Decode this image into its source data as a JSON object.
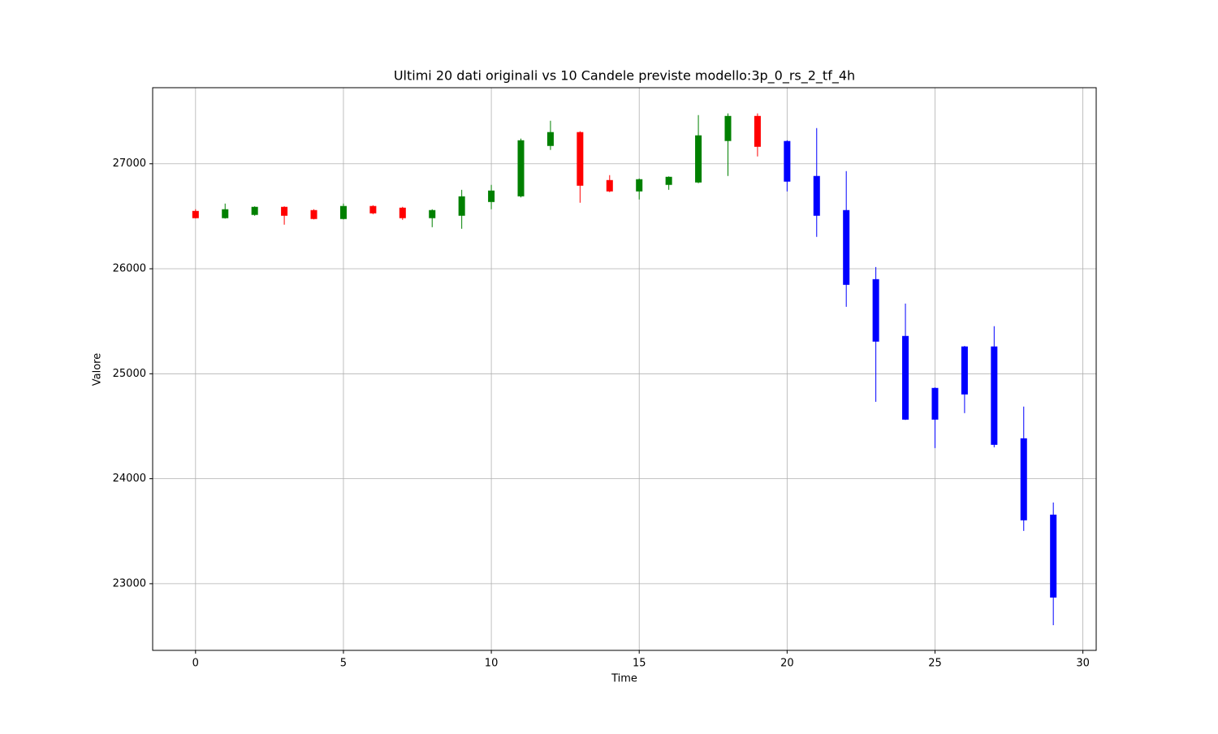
{
  "chart_data": {
    "type": "candlestick",
    "title": "Ultimi 20 dati originali vs 10 Candele previste modello:3p_0_rs_2_tf_4h",
    "x_label": "Time",
    "y_label": "Valore",
    "x": [
      0,
      1,
      2,
      3,
      4,
      5,
      6,
      7,
      8,
      9,
      10,
      11,
      12,
      13,
      14,
      15,
      16,
      17,
      18,
      19,
      20,
      21,
      22,
      23,
      24,
      25,
      26,
      27,
      28,
      29
    ],
    "open": [
      26551,
      26482,
      26513,
      26590,
      26559,
      26474,
      26598,
      26582,
      26482,
      26505,
      26636,
      26690,
      27170,
      27302,
      26845,
      26737,
      26799,
      26822,
      27217,
      27456,
      27217,
      26884,
      26559,
      25901,
      25360,
      24865,
      24803,
      25260,
      24385,
      23658
    ],
    "high": [
      26567,
      26621,
      26595,
      26595,
      26567,
      26621,
      26605,
      26590,
      26567,
      26752,
      26799,
      27240,
      27410,
      27310,
      26892,
      26860,
      26880,
      27464,
      27480,
      27480,
      27224,
      27340,
      26930,
      26017,
      25669,
      24870,
      25265,
      25453,
      24687,
      23774
    ],
    "low": [
      26480,
      26478,
      26505,
      26420,
      26470,
      26470,
      26520,
      26466,
      26396,
      26381,
      26567,
      26680,
      27132,
      26629,
      26730,
      26660,
      26752,
      26815,
      26884,
      27070,
      26737,
      26304,
      25638,
      24733,
      24560,
      24292,
      24625,
      24300,
      23503,
      22605
    ],
    "close": [
      26482,
      26567,
      26590,
      26505,
      26474,
      26598,
      26528,
      26482,
      26559,
      26690,
      26745,
      27224,
      27302,
      26791,
      26737,
      26853,
      26876,
      27271,
      27456,
      27162,
      26830,
      26505,
      25847,
      25306,
      24563,
      24563,
      25260,
      24323,
      23604,
      22868
    ],
    "colors": [
      "red",
      "green",
      "green",
      "red",
      "red",
      "green",
      "red",
      "red",
      "green",
      "green",
      "green",
      "green",
      "green",
      "red",
      "red",
      "green",
      "green",
      "green",
      "green",
      "red",
      "blue",
      "blue",
      "blue",
      "blue",
      "blue",
      "blue",
      "blue",
      "blue",
      "blue",
      "blue"
    ],
    "xlim": [
      -1.45,
      30.45
    ],
    "ylim": [
      22365,
      27725
    ],
    "xticks": [
      0,
      5,
      10,
      15,
      20,
      25,
      30
    ],
    "yticks": [
      23000,
      24000,
      25000,
      26000,
      27000
    ],
    "grid": true
  }
}
